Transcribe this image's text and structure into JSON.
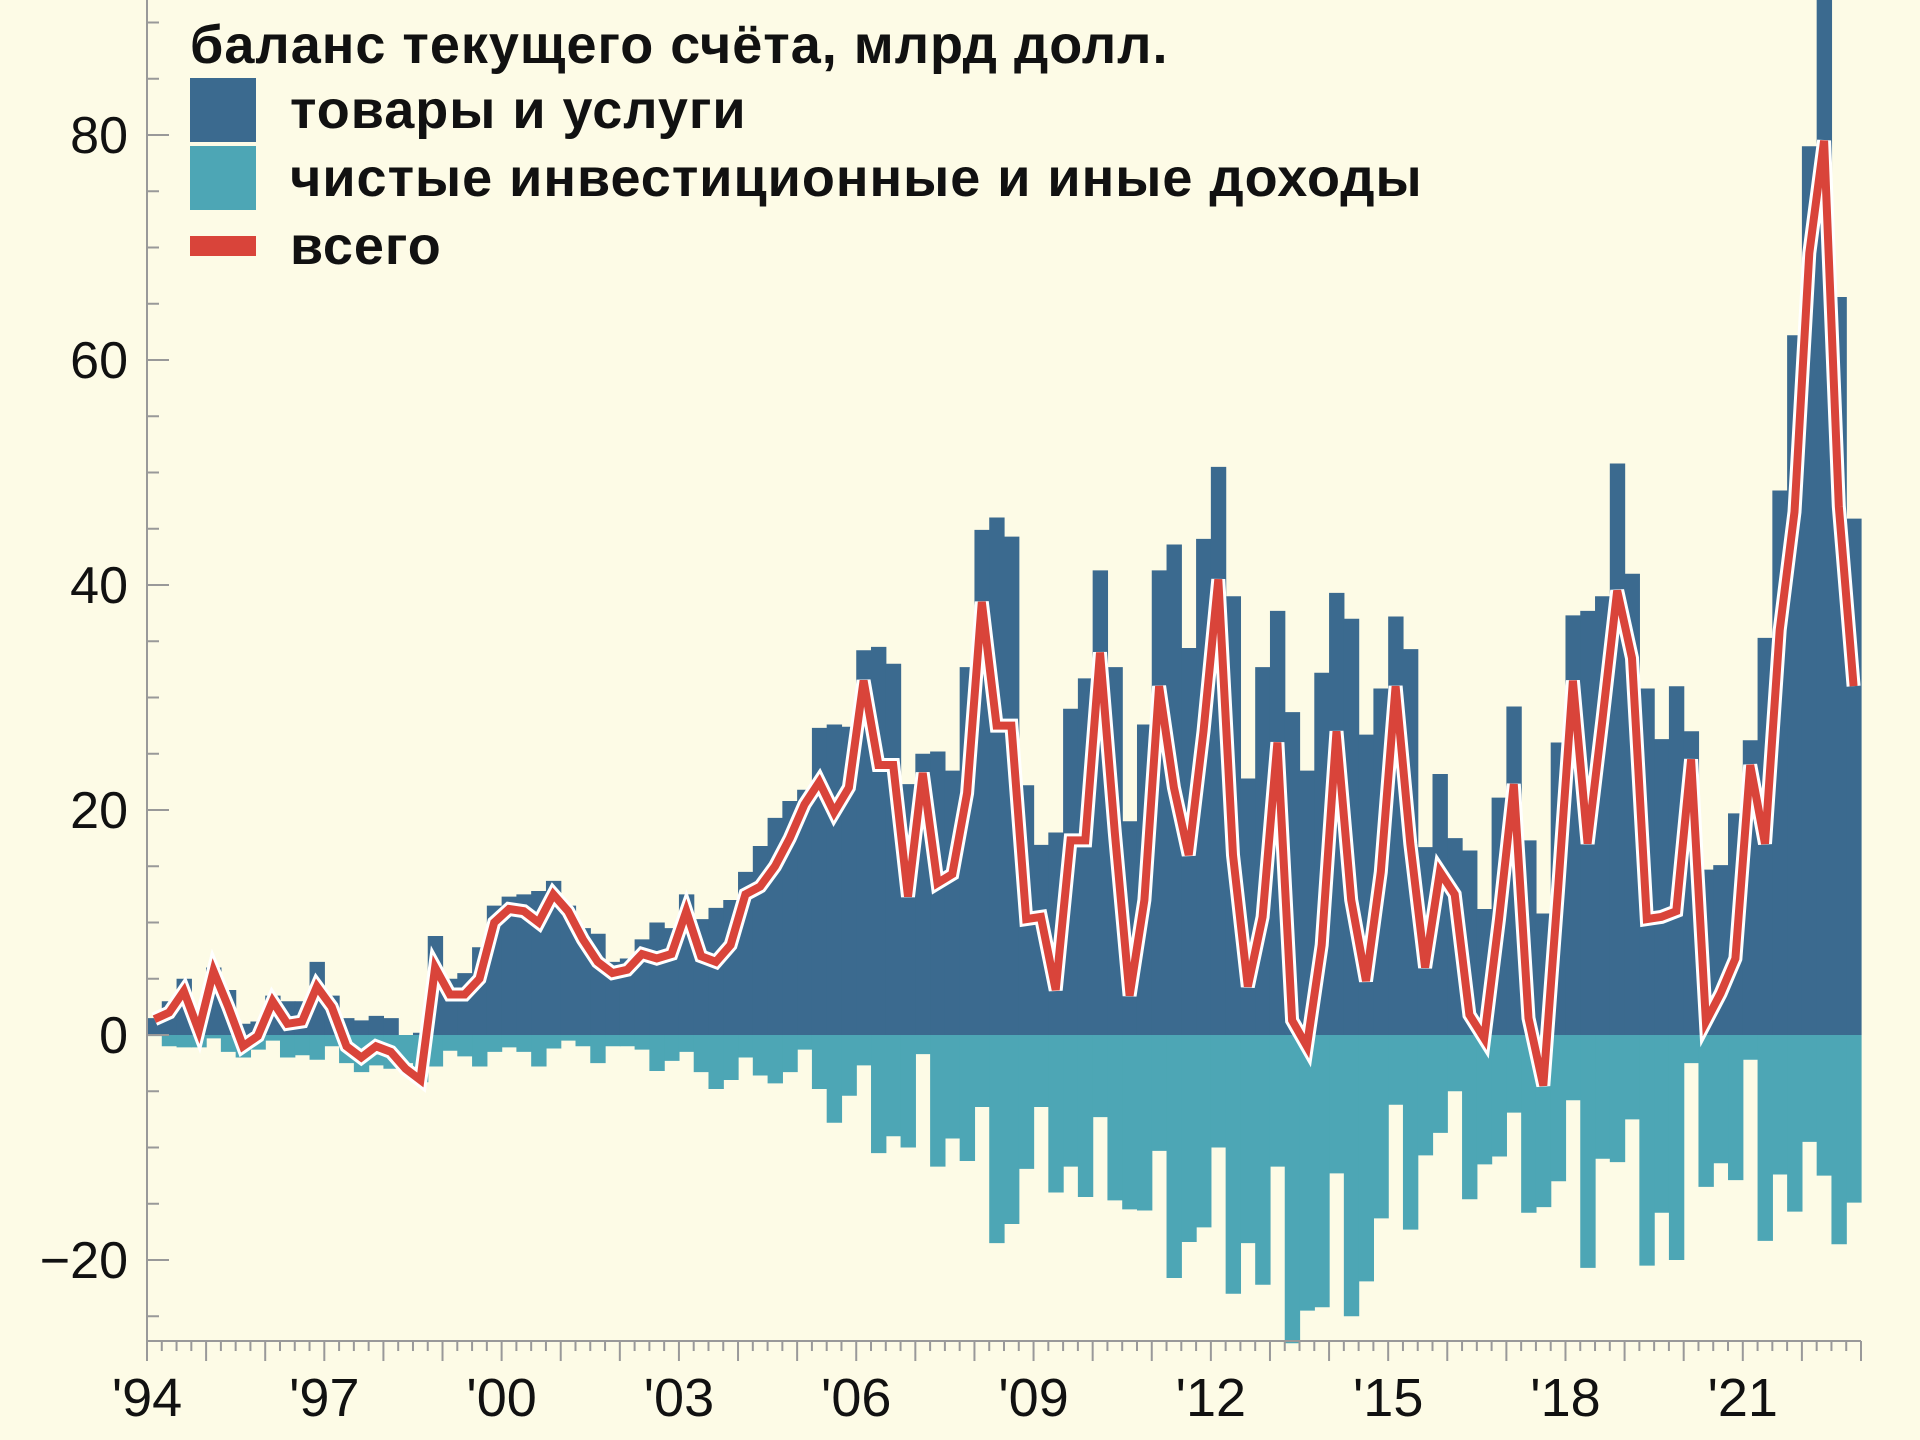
{
  "chart_data": {
    "type": "bar",
    "title": "баланс текущего счёта, млрд долл.",
    "xlabel": "",
    "ylabel": "",
    "ylim": [
      -27.2,
      92
    ],
    "grid": false,
    "legend_position": "top-left",
    "start_year": 1994,
    "periods_per_year": 4,
    "x_tick_labels": [
      "'94",
      "'97",
      "'00",
      "'03",
      "'06",
      "'09",
      "'12",
      "'15",
      "'18",
      "'21"
    ],
    "x_tick_years": [
      1994,
      1997,
      2000,
      2003,
      2006,
      2009,
      2012,
      2015,
      2018,
      2021
    ],
    "y_ticks": [
      80,
      60,
      40,
      20,
      0,
      -20
    ],
    "y_tick_labels": [
      "80",
      "60",
      "40",
      "20",
      "0",
      "−20"
    ],
    "series": [
      {
        "name": "товары и услуги",
        "type": "bar",
        "color": "#3b6a8f",
        "values": [
          1.5,
          3,
          5,
          1.5,
          6,
          4,
          1,
          1.2,
          3.5,
          3,
          3,
          6.5,
          3.5,
          1.5,
          1.3,
          1.7,
          1.5,
          -0.5,
          0.2,
          8.8,
          5,
          5.5,
          7.8,
          11.5,
          12.3,
          12.5,
          12.8,
          13.7,
          11.5,
          9.5,
          9,
          6.5,
          6.8,
          8.5,
          10,
          9.5,
          12.5,
          10.3,
          11.3,
          12,
          14.5,
          16.8,
          19.3,
          20.8,
          21.8,
          27.3,
          27.6,
          27.4,
          34.2,
          34.5,
          33,
          22.3,
          25,
          25.2,
          23.5,
          32.7,
          44.9,
          46,
          44.3,
          22.2,
          16.9,
          18,
          29,
          31.7,
          41.3,
          32.7,
          19,
          27.6,
          41.3,
          43.6,
          34.4,
          44.1,
          50.5,
          39,
          22.8,
          32.7,
          37.7,
          28.7,
          23.5,
          32.2,
          39.3,
          37,
          26.7,
          30.8,
          37.2,
          34.3,
          16.7,
          23.2,
          17.5,
          16.4,
          11.2,
          21.1,
          29.2,
          17.3,
          10.8,
          26,
          37.3,
          37.7,
          39,
          50.8,
          41,
          30.8,
          26.3,
          31,
          27,
          14.7,
          15.1,
          19.7,
          26.2,
          35.3,
          48.4,
          62.2,
          79,
          92,
          65.6,
          45.9
        ]
      },
      {
        "name": "чистые инвестиционные и иные доходы",
        "type": "bar",
        "color": "#4da6b5",
        "values": [
          -0.1,
          -1,
          -1.1,
          -1.1,
          -0.3,
          -1.5,
          -2,
          -1.3,
          -0.5,
          -2,
          -1.8,
          -2.2,
          -1,
          -2.5,
          -3.3,
          -2.7,
          -3,
          -2.5,
          -4.2,
          -2.8,
          -1.4,
          -1.9,
          -2.8,
          -1.5,
          -1.1,
          -1.5,
          -2.8,
          -1.2,
          -0.5,
          -1,
          -2.5,
          -1,
          -1,
          -1.3,
          -3.2,
          -2.3,
          -1.5,
          -3.3,
          -4.8,
          -4,
          -2,
          -3.6,
          -4.3,
          -3.3,
          -1.3,
          -4.8,
          -7.8,
          -5.4,
          -2.7,
          -10.5,
          -9,
          -10,
          -1.7,
          -11.7,
          -9.2,
          -11.2,
          -6.4,
          -18.5,
          -16.8,
          -11.9,
          -6.4,
          -14,
          -11.7,
          -14.4,
          -7.3,
          -14.7,
          -15.5,
          -15.6,
          -10.3,
          -21.6,
          -18.4,
          -17.1,
          -10,
          -23,
          -18.5,
          -22.2,
          -11.7,
          -27.4,
          -24.5,
          -24.2,
          -12.3,
          -25,
          -21.9,
          -16.3,
          -6.2,
          -17.3,
          -10.7,
          -8.7,
          -5,
          -14.6,
          -11.5,
          -10.8,
          -6.9,
          -15.8,
          -15.3,
          -13,
          -5.8,
          -20.7,
          -11,
          -11.3,
          -7.5,
          -20.5,
          -15.8,
          -20,
          -2.5,
          -13.5,
          -11.4,
          -12.9,
          -2.2,
          -18.3,
          -12.4,
          -15.7,
          -9.5,
          -12.5,
          -18.6,
          -14.9
        ]
      },
      {
        "name": "всего",
        "type": "line",
        "color": "#d9443a",
        "values": [
          1.4,
          2,
          3.9,
          0.4,
          5.7,
          2.5,
          -1,
          -0.1,
          3,
          1,
          1.2,
          4.3,
          2.5,
          -1,
          -2,
          -1,
          -1.5,
          -3,
          -4,
          6,
          3.6,
          3.6,
          5,
          10,
          11.2,
          11,
          10,
          12.5,
          11,
          8.5,
          6.5,
          5.5,
          5.8,
          7.2,
          6.8,
          7.2,
          11,
          7,
          6.5,
          8,
          12.5,
          13.2,
          15,
          17.5,
          20.5,
          22.5,
          19.8,
          22,
          31.5,
          24,
          24,
          12.3,
          23.3,
          13.5,
          14.3,
          21.5,
          38.5,
          27.5,
          27.5,
          10.3,
          10.5,
          4,
          17.3,
          17.3,
          34,
          18,
          3.5,
          12,
          31,
          22,
          16,
          27,
          40.5,
          16,
          4.3,
          10.5,
          26,
          1.3,
          -1,
          8,
          27,
          12,
          4.8,
          14.5,
          31,
          17,
          6,
          14.5,
          12.5,
          1.8,
          -0.3,
          10.3,
          22.3,
          1.5,
          -4.5,
          13,
          31.5,
          17,
          28,
          39.5,
          33.5,
          10.3,
          10.5,
          11,
          24.5,
          1.2,
          3.7,
          6.8,
          24,
          17,
          36,
          46.5,
          69.5,
          79.5,
          47,
          31
        ]
      }
    ]
  }
}
